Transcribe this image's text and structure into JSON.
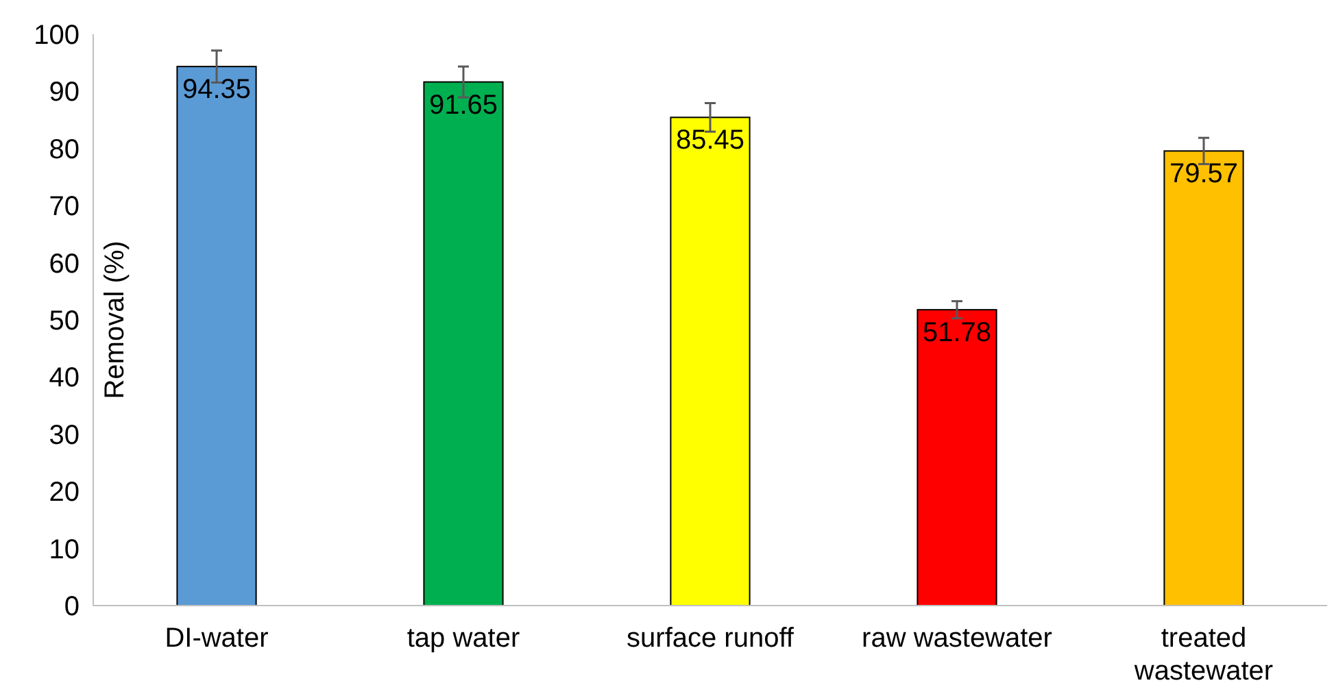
{
  "chart_data": {
    "type": "bar",
    "ylabel": "Removal (%)",
    "categories": [
      "DI-water",
      "tap water",
      "surface runoff",
      "raw wastewater",
      "treated\nwastewater"
    ],
    "values": [
      94.35,
      91.65,
      85.45,
      51.78,
      79.57
    ],
    "colors": [
      "#5b9bd5",
      "#00b050",
      "#ffff00",
      "#ff0000",
      "#ffc000"
    ],
    "errors": [
      2.8,
      2.7,
      2.5,
      1.5,
      2.3
    ],
    "ylim": [
      0,
      100
    ],
    "yticks": [
      0,
      10,
      20,
      30,
      40,
      50,
      60,
      70,
      80,
      90,
      100
    ],
    "data_labels": true
  }
}
